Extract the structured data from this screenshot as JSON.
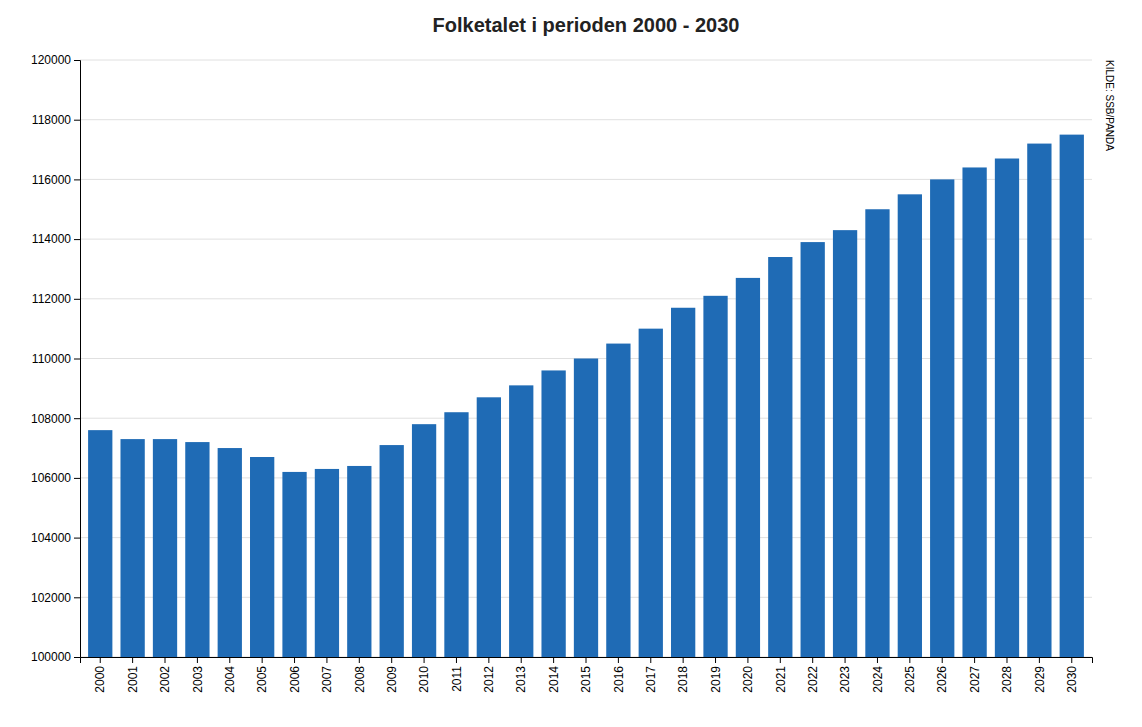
{
  "chart_data": {
    "type": "bar",
    "title": "Folketalet i perioden 2000 - 2030",
    "categories": [
      "2000",
      "2001",
      "2002",
      "2003",
      "2004",
      "2005",
      "2006",
      "2007",
      "2008",
      "2009",
      "2010",
      "2011",
      "2012",
      "2013",
      "2014",
      "2015",
      "2016",
      "2017",
      "2018",
      "2019",
      "2020",
      "2021",
      "2022",
      "2023",
      "2024",
      "2025",
      "2026",
      "2027",
      "2028",
      "2029",
      "2030"
    ],
    "values": [
      107600,
      107300,
      107300,
      107200,
      107000,
      106700,
      106200,
      106300,
      106400,
      107100,
      107800,
      108200,
      108700,
      109100,
      109600,
      110000,
      110500,
      111000,
      111700,
      112100,
      112700,
      113400,
      113900,
      114300,
      115000,
      115500,
      116000,
      116400,
      116700,
      117200,
      117500
    ],
    "color": "#1F6BB5",
    "ylim": [
      100000,
      120000
    ],
    "yticks": [
      100000,
      102000,
      104000,
      106000,
      108000,
      110000,
      112000,
      114000,
      116000,
      118000,
      120000
    ],
    "grid": true,
    "annotation": "KILDE: SSB/PANDA"
  }
}
